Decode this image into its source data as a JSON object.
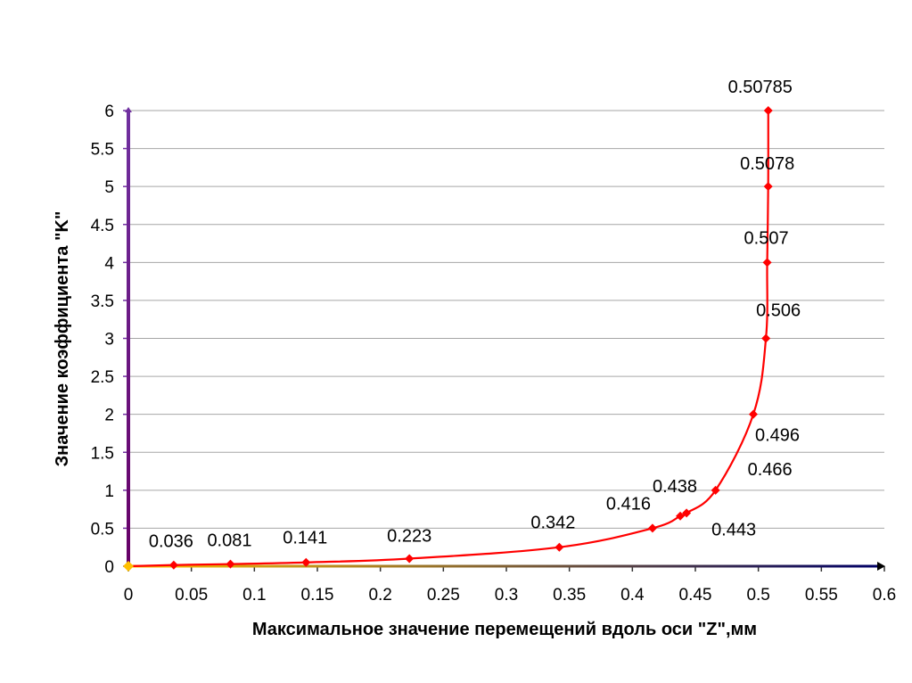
{
  "chart_data": {
    "type": "line",
    "title": "",
    "xlabel": "Максимальное значение перемещений вдоль оси \"Z\",мм",
    "ylabel": "Значение коэффициента \"K\"",
    "xlim": [
      0,
      0.6
    ],
    "ylim": [
      0,
      6
    ],
    "x_ticks": [
      "0",
      "0.05",
      "0.1",
      "0.15",
      "0.2",
      "0.25",
      "0.3",
      "0.35",
      "0.4",
      "0.45",
      "0.5",
      "0.55",
      "0.6"
    ],
    "y_ticks": [
      "0",
      "0.5",
      "1",
      "1.5",
      "2",
      "2.5",
      "3",
      "3.5",
      "4",
      "4.5",
      "5",
      "5.5",
      "6"
    ],
    "grid": "horizontal",
    "legend": "none",
    "series": [
      {
        "color": "#ff0000",
        "marker": "diamond",
        "x": [
          0,
          0.036,
          0.081,
          0.141,
          0.223,
          0.342,
          0.416,
          0.438,
          0.443,
          0.466,
          0.496,
          0.506,
          0.507,
          0.5078,
          0.50785
        ],
        "y": [
          0,
          0.015,
          0.028,
          0.05,
          0.1,
          0.25,
          0.5,
          0.66,
          0.7,
          1,
          2,
          3,
          4,
          5,
          6
        ]
      }
    ],
    "data_labels": [
      {
        "text": "0.036",
        "x": 0.036,
        "y": 0.015
      },
      {
        "text": "0.081",
        "x": 0.081,
        "y": 0.028
      },
      {
        "text": "0.141",
        "x": 0.141,
        "y": 0.05
      },
      {
        "text": "0.223",
        "x": 0.223,
        "y": 0.1
      },
      {
        "text": "0.342",
        "x": 0.342,
        "y": 0.25
      },
      {
        "text": "0.416",
        "x": 0.416,
        "y": 0.5
      },
      {
        "text": "0.438",
        "x": 0.438,
        "y": 0.66
      },
      {
        "text": "0.443",
        "x": 0.443,
        "y": 0.7
      },
      {
        "text": "0.466",
        "x": 0.466,
        "y": 1
      },
      {
        "text": "0.496",
        "x": 0.496,
        "y": 2
      },
      {
        "text": "0.506",
        "x": 0.506,
        "y": 3
      },
      {
        "text": "0.507",
        "x": 0.507,
        "y": 4
      },
      {
        "text": "0.5078",
        "x": 0.5078,
        "y": 5
      },
      {
        "text": "0.50785",
        "x": 0.50785,
        "y": 6
      }
    ],
    "origin_marker_color": "#ffc000",
    "x_axis_gradient": [
      "#ffc000",
      "#000066"
    ],
    "y_axis_gradient": [
      "#660066",
      "#7030a0"
    ],
    "gridline_color": "#a6a6a6"
  }
}
